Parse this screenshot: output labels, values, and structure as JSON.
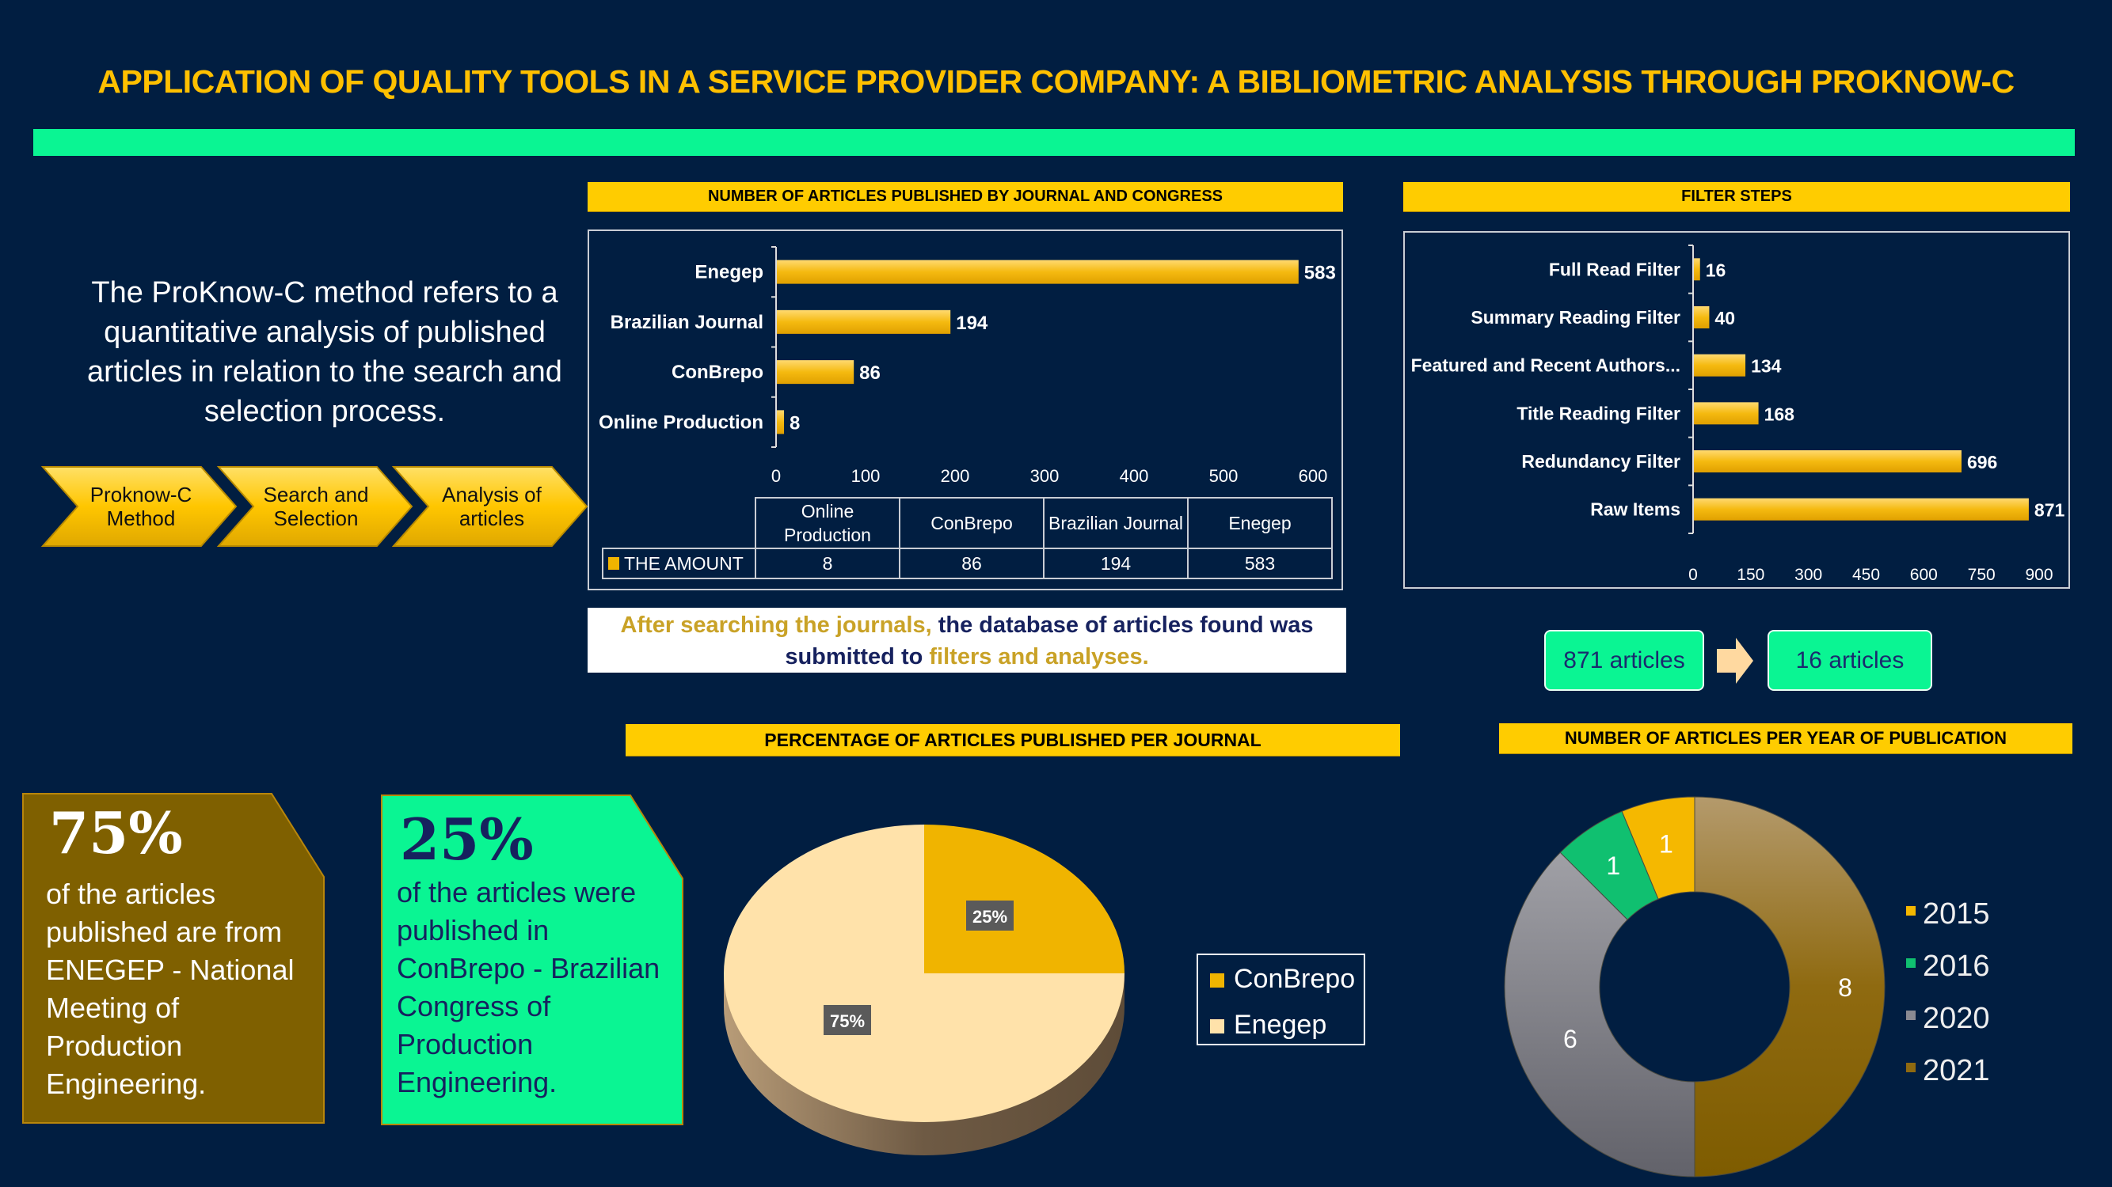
{
  "title": "APPLICATION OF QUALITY TOOLS IN A SERVICE PROVIDER COMPANY: A BIBLIOMETRIC ANALYSIS THROUGH PROKNOW-C",
  "intro": "The ProKnow-C method refers to a quantitative analysis of published articles in relation to the search and selection process.",
  "process_steps": [
    {
      "line1": "Proknow-C",
      "line2": "Method"
    },
    {
      "line1": "Search and",
      "line2": "Selection"
    },
    {
      "line1": "Analysis of",
      "line2": "articles"
    }
  ],
  "colors": {
    "background": "#011E41",
    "gold": "#FFC000",
    "header_yellow": "#FFCC00",
    "green": "#0AF593",
    "bar": "#F0B400",
    "olive": "#7F6000"
  },
  "chart_data": [
    {
      "type": "bar",
      "orientation": "horizontal",
      "title": "NUMBER OF ARTICLES PUBLISHED BY JOURNAL AND CONGRESS",
      "categories": [
        "Enegep",
        "Brazilian Journal",
        "ConBrepo",
        "Online Production"
      ],
      "values": [
        583,
        194,
        86,
        8
      ],
      "xlim": [
        0,
        600
      ],
      "xticks": [
        "0",
        "100",
        "200",
        "300",
        "400",
        "500",
        "600"
      ],
      "series_name": "THE AMOUNT",
      "table": {
        "headers": [
          [
            "Online",
            "Production"
          ],
          [
            "ConBrepo"
          ],
          [
            "Brazilian Journal"
          ],
          [
            "Enegep"
          ]
        ],
        "row_label": "THE AMOUNT",
        "row_values": [
          "8",
          "86",
          "194",
          "583"
        ]
      }
    },
    {
      "type": "bar",
      "orientation": "horizontal",
      "title": "FILTER STEPS",
      "categories": [
        "Full Read Filter",
        "Summary Reading Filter",
        "Featured and Recent Authors...",
        "Title Reading Filter",
        "Redundancy Filter",
        "Raw Items"
      ],
      "values": [
        16,
        40,
        134,
        168,
        696,
        871
      ],
      "xlim": [
        0,
        900
      ],
      "xticks": [
        "0",
        "150",
        "300",
        "450",
        "600",
        "750",
        "900"
      ]
    },
    {
      "type": "pie",
      "title": "PERCENTAGE OF ARTICLES PUBLISHED PER JOURNAL",
      "labels": [
        "ConBrepo",
        "Enegep"
      ],
      "values": [
        25,
        75
      ],
      "data_labels": [
        "25%",
        "75%"
      ],
      "colors": [
        "#F0B400",
        "#FFE2AA"
      ],
      "legend": "right"
    },
    {
      "type": "pie",
      "variant": "donut",
      "title": "NUMBER OF ARTICLES PER YEAR OF PUBLICATION",
      "labels": [
        "2015",
        "2016",
        "2020",
        "2021"
      ],
      "values": [
        1,
        1,
        6,
        8
      ],
      "data_labels": [
        "1",
        "1",
        "6",
        "8"
      ],
      "colors": [
        "#F5B800",
        "#10C070",
        "#8A8A92",
        "#8F6A10"
      ],
      "legend": "right"
    }
  ],
  "note": {
    "segments": [
      {
        "text": "After searching the journals, ",
        "color": "#C9A227"
      },
      {
        "text": "the database of articles found was submitted to ",
        "color": "#16215E"
      },
      {
        "text": "filters and analyses.",
        "color": "#C9A227"
      }
    ]
  },
  "flow": {
    "from": "871 articles",
    "to": "16 articles"
  },
  "cards": [
    {
      "big": "75%",
      "text": [
        "of the articles",
        "published are from",
        "ENEGEP - National",
        "Meeting of",
        "Production",
        "Engineering."
      ]
    },
    {
      "big": "25%",
      "text": [
        "of the articles were",
        "published in",
        "ConBrepo - Brazilian",
        "Congress of",
        "Production",
        "Engineering."
      ]
    }
  ]
}
